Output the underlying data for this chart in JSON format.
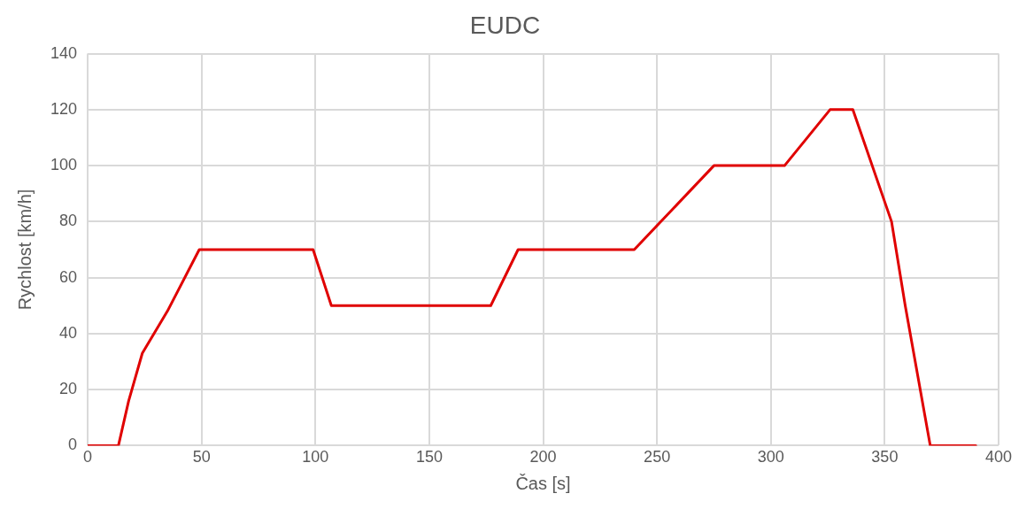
{
  "chart_data": {
    "type": "line",
    "title": "EUDC",
    "xlabel": "Čas [s]",
    "ylabel": "Rychlost [km/h]",
    "x": [
      0,
      13.5,
      18,
      24,
      35,
      49,
      99,
      107,
      177,
      189,
      240,
      275,
      306,
      326,
      336,
      353,
      359,
      370,
      390
    ],
    "series": [
      {
        "color": "#e00000",
        "values": [
          0,
          0,
          16,
          33,
          48,
          70,
          70,
          50,
          50,
          70,
          70,
          100,
          100,
          120,
          120,
          80,
          50,
          0,
          0
        ]
      }
    ],
    "xlim": [
      0,
      400
    ],
    "xticks": [
      0,
      50,
      100,
      150,
      200,
      250,
      300,
      350,
      400
    ],
    "ylim": [
      0,
      140
    ],
    "yticks": [
      0,
      20,
      40,
      60,
      80,
      100,
      120,
      140
    ],
    "grid": true,
    "legend": false,
    "marker": "none",
    "line_style": "solid"
  }
}
